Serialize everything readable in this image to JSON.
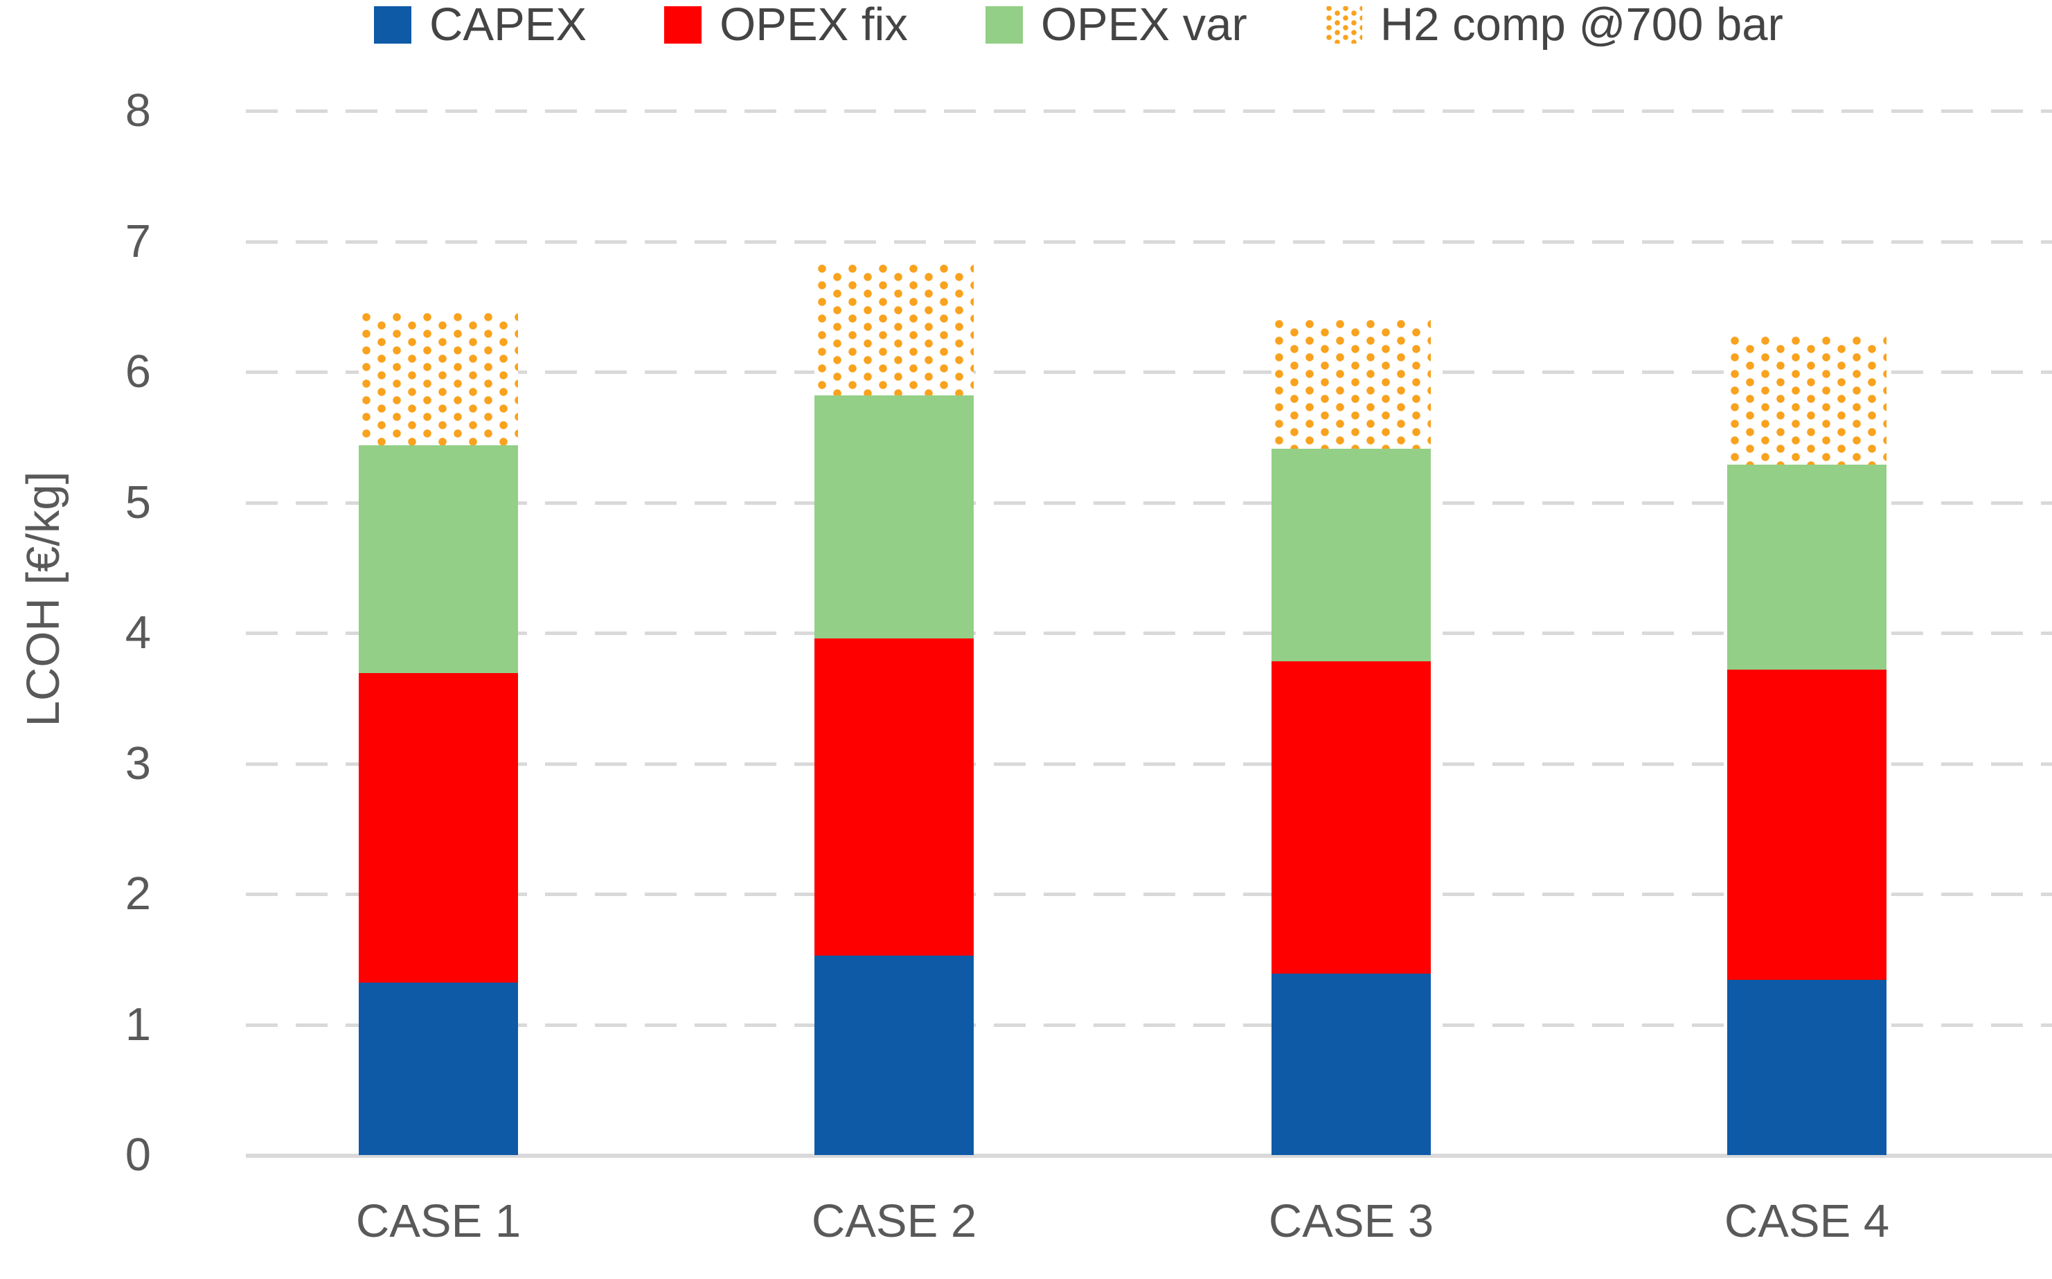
{
  "chart_data": {
    "type": "bar",
    "stacked": true,
    "categories": [
      "CASE 1",
      "CASE 2",
      "CASE 3",
      "CASE 4"
    ],
    "series": [
      {
        "name": "CAPEX",
        "color": "#0E5AA7",
        "pattern": "solid",
        "values": [
          1.32,
          1.53,
          1.39,
          1.34
        ]
      },
      {
        "name": "OPEX fix",
        "color": "#FE0000",
        "pattern": "solid",
        "values": [
          2.37,
          2.43,
          2.39,
          2.38
        ]
      },
      {
        "name": "OPEX var",
        "color": "#93CF86",
        "pattern": "solid",
        "values": [
          1.75,
          1.86,
          1.63,
          1.57
        ]
      },
      {
        "name": "H2 comp @700 bar",
        "color": "#F9A21D",
        "pattern": "dotted",
        "values": [
          1.01,
          1.0,
          0.99,
          0.98
        ]
      }
    ],
    "totals": [
      6.45,
      6.82,
      6.4,
      6.27
    ],
    "xlabel": "",
    "ylabel": "LCOH [€/kg]",
    "ylim": [
      0,
      8
    ],
    "yticks": [
      0,
      1,
      2,
      3,
      4,
      5,
      6,
      7,
      8
    ],
    "grid": "horizontal-dashed",
    "legend_position": "top",
    "colors": {
      "axis_text": "#595959",
      "legend_text": "#444444",
      "gridline": "#D9D9D9",
      "axis_line": "#D9D9D9",
      "background": "#FFFFFF"
    }
  }
}
